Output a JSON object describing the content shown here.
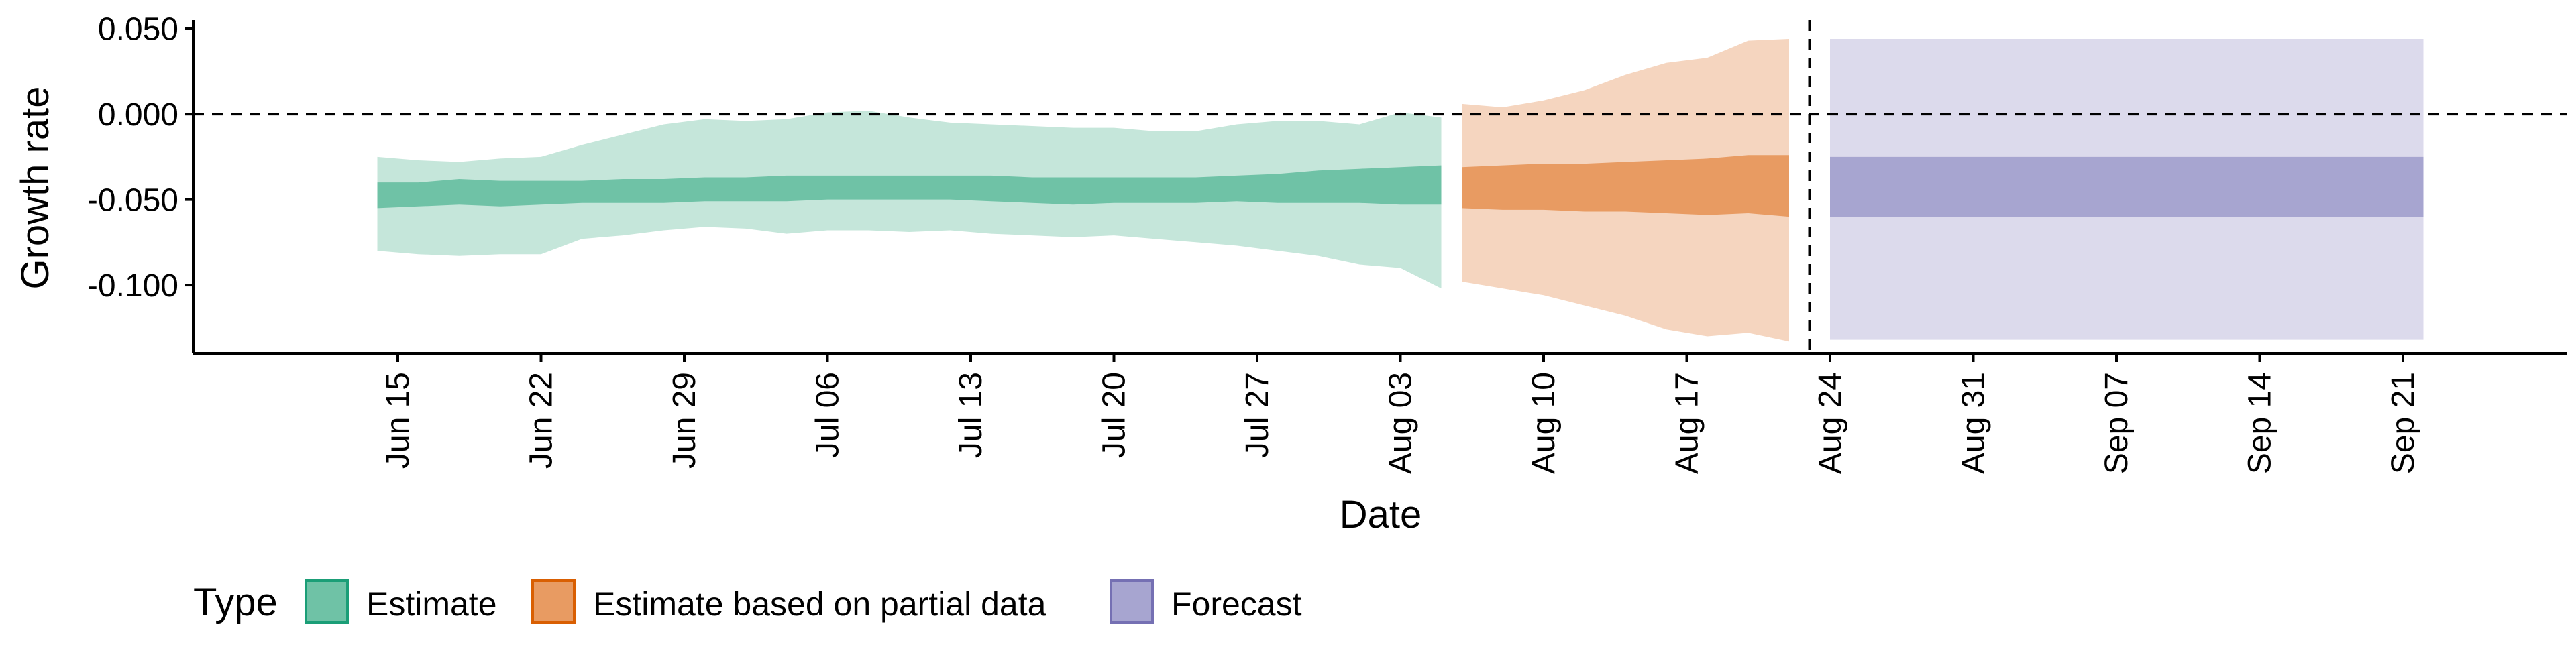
{
  "chart_data": {
    "type": "area",
    "title": "",
    "xlabel": "Date",
    "ylabel": "Growth rate",
    "ylim": [
      -0.14,
      0.055
    ],
    "y_ticks": [
      {
        "value": 0.05,
        "label": "0.050"
      },
      {
        "value": 0.0,
        "label": "0.000"
      },
      {
        "value": -0.05,
        "label": "-0.050"
      },
      {
        "value": -0.1,
        "label": "-0.100"
      }
    ],
    "xlim": [
      "2020-06-05",
      "2020-09-29"
    ],
    "x_ticks": [
      {
        "date": "2020-06-15",
        "label": "Jun 15"
      },
      {
        "date": "2020-06-22",
        "label": "Jun 22"
      },
      {
        "date": "2020-06-29",
        "label": "Jun 29"
      },
      {
        "date": "2020-07-06",
        "label": "Jul 06"
      },
      {
        "date": "2020-07-13",
        "label": "Jul 13"
      },
      {
        "date": "2020-07-20",
        "label": "Jul 20"
      },
      {
        "date": "2020-07-27",
        "label": "Jul 27"
      },
      {
        "date": "2020-08-03",
        "label": "Aug 03"
      },
      {
        "date": "2020-08-10",
        "label": "Aug 10"
      },
      {
        "date": "2020-08-17",
        "label": "Aug 17"
      },
      {
        "date": "2020-08-24",
        "label": "Aug 24"
      },
      {
        "date": "2020-08-31",
        "label": "Aug 31"
      },
      {
        "date": "2020-09-07",
        "label": "Sep 07"
      },
      {
        "date": "2020-09-14",
        "label": "Sep 14"
      },
      {
        "date": "2020-09-21",
        "label": "Sep 21"
      }
    ],
    "reference_lines": [
      {
        "orientation": "horizontal",
        "y": 0.0,
        "style": "dashed"
      },
      {
        "orientation": "vertical",
        "x": "2020-08-23",
        "style": "dashed"
      }
    ],
    "grid": false,
    "legend": {
      "title": "Type",
      "position": "bottom-left",
      "entries": [
        {
          "label": "Estimate",
          "fill": "#6fc2a6",
          "border": "#1b9e77"
        },
        {
          "label": "Estimate based on partial data",
          "fill": "#e89b62",
          "border": "#d95f02"
        },
        {
          "label": "Forecast",
          "fill": "#a7a5d0",
          "border": "#7570b3"
        }
      ]
    },
    "series": [
      {
        "name": "Estimate",
        "outer_color": "#c5e6da",
        "inner_color": "#6fc2a6",
        "points": [
          {
            "x": "2020-06-14",
            "lo90": -0.08,
            "lo50": -0.055,
            "hi50": -0.04,
            "hi90": -0.025
          },
          {
            "x": "2020-06-16",
            "lo90": -0.082,
            "lo50": -0.054,
            "hi50": -0.04,
            "hi90": -0.027
          },
          {
            "x": "2020-06-18",
            "lo90": -0.083,
            "lo50": -0.053,
            "hi50": -0.038,
            "hi90": -0.028
          },
          {
            "x": "2020-06-20",
            "lo90": -0.082,
            "lo50": -0.054,
            "hi50": -0.039,
            "hi90": -0.026
          },
          {
            "x": "2020-06-22",
            "lo90": -0.082,
            "lo50": -0.053,
            "hi50": -0.039,
            "hi90": -0.025
          },
          {
            "x": "2020-06-24",
            "lo90": -0.073,
            "lo50": -0.052,
            "hi50": -0.039,
            "hi90": -0.018
          },
          {
            "x": "2020-06-26",
            "lo90": -0.071,
            "lo50": -0.052,
            "hi50": -0.038,
            "hi90": -0.012
          },
          {
            "x": "2020-06-28",
            "lo90": -0.068,
            "lo50": -0.052,
            "hi50": -0.038,
            "hi90": -0.006
          },
          {
            "x": "2020-06-30",
            "lo90": -0.066,
            "lo50": -0.051,
            "hi50": -0.037,
            "hi90": -0.003
          },
          {
            "x": "2020-07-02",
            "lo90": -0.067,
            "lo50": -0.051,
            "hi50": -0.037,
            "hi90": -0.004
          },
          {
            "x": "2020-07-04",
            "lo90": -0.07,
            "lo50": -0.051,
            "hi50": -0.036,
            "hi90": -0.003
          },
          {
            "x": "2020-07-06",
            "lo90": -0.068,
            "lo50": -0.05,
            "hi50": -0.036,
            "hi90": 0.001
          },
          {
            "x": "2020-07-08",
            "lo90": -0.068,
            "lo50": -0.05,
            "hi50": -0.036,
            "hi90": 0.002
          },
          {
            "x": "2020-07-10",
            "lo90": -0.069,
            "lo50": -0.05,
            "hi50": -0.036,
            "hi90": -0.002
          },
          {
            "x": "2020-07-12",
            "lo90": -0.068,
            "lo50": -0.05,
            "hi50": -0.036,
            "hi90": -0.005
          },
          {
            "x": "2020-07-14",
            "lo90": -0.07,
            "lo50": -0.051,
            "hi50": -0.036,
            "hi90": -0.006
          },
          {
            "x": "2020-07-16",
            "lo90": -0.071,
            "lo50": -0.052,
            "hi50": -0.037,
            "hi90": -0.007
          },
          {
            "x": "2020-07-18",
            "lo90": -0.072,
            "lo50": -0.053,
            "hi50": -0.037,
            "hi90": -0.008
          },
          {
            "x": "2020-07-20",
            "lo90": -0.071,
            "lo50": -0.052,
            "hi50": -0.037,
            "hi90": -0.008
          },
          {
            "x": "2020-07-22",
            "lo90": -0.073,
            "lo50": -0.052,
            "hi50": -0.037,
            "hi90": -0.01
          },
          {
            "x": "2020-07-24",
            "lo90": -0.075,
            "lo50": -0.052,
            "hi50": -0.037,
            "hi90": -0.01
          },
          {
            "x": "2020-07-26",
            "lo90": -0.077,
            "lo50": -0.051,
            "hi50": -0.036,
            "hi90": -0.006
          },
          {
            "x": "2020-07-28",
            "lo90": -0.08,
            "lo50": -0.052,
            "hi50": -0.035,
            "hi90": -0.004
          },
          {
            "x": "2020-07-30",
            "lo90": -0.083,
            "lo50": -0.052,
            "hi50": -0.033,
            "hi90": -0.004
          },
          {
            "x": "2020-08-01",
            "lo90": -0.088,
            "lo50": -0.052,
            "hi50": -0.032,
            "hi90": -0.006
          },
          {
            "x": "2020-08-03",
            "lo90": -0.09,
            "lo50": -0.053,
            "hi50": -0.031,
            "hi90": 0.001
          },
          {
            "x": "2020-08-05",
            "lo90": -0.102,
            "lo50": -0.053,
            "hi50": -0.03,
            "hi90": -0.002
          }
        ]
      },
      {
        "name": "Estimate based on partial data",
        "outer_color": "#f5d5bf",
        "inner_color": "#e89b62",
        "points": [
          {
            "x": "2020-08-06",
            "lo90": -0.098,
            "lo50": -0.055,
            "hi50": -0.031,
            "hi90": 0.006
          },
          {
            "x": "2020-08-08",
            "lo90": -0.102,
            "lo50": -0.056,
            "hi50": -0.03,
            "hi90": 0.004
          },
          {
            "x": "2020-08-10",
            "lo90": -0.106,
            "lo50": -0.056,
            "hi50": -0.029,
            "hi90": 0.008
          },
          {
            "x": "2020-08-12",
            "lo90": -0.112,
            "lo50": -0.057,
            "hi50": -0.029,
            "hi90": 0.014
          },
          {
            "x": "2020-08-14",
            "lo90": -0.118,
            "lo50": -0.057,
            "hi50": -0.028,
            "hi90": 0.023
          },
          {
            "x": "2020-08-16",
            "lo90": -0.126,
            "lo50": -0.058,
            "hi50": -0.027,
            "hi90": 0.03
          },
          {
            "x": "2020-08-18",
            "lo90": -0.13,
            "lo50": -0.059,
            "hi50": -0.026,
            "hi90": 0.033
          },
          {
            "x": "2020-08-20",
            "lo90": -0.128,
            "lo50": -0.058,
            "hi50": -0.024,
            "hi90": 0.043
          },
          {
            "x": "2020-08-22",
            "lo90": -0.133,
            "lo50": -0.06,
            "hi50": -0.024,
            "hi90": 0.044
          }
        ]
      },
      {
        "name": "Forecast",
        "outer_color": "#dcdaec",
        "inner_color": "#a7a5d0",
        "points": [
          {
            "x": "2020-08-24",
            "lo90": -0.132,
            "lo50": -0.06,
            "hi50": -0.025,
            "hi90": 0.044
          },
          {
            "x": "2020-09-22",
            "lo90": -0.132,
            "lo50": -0.06,
            "hi50": -0.025,
            "hi90": 0.044
          }
        ]
      }
    ]
  }
}
